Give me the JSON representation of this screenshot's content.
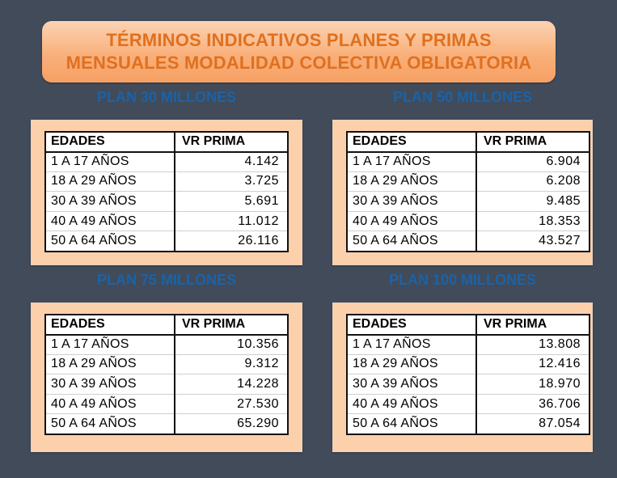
{
  "title": {
    "line1": "TÉRMINOS INDICATIVOS PLANES Y PRIMAS",
    "line2": "MENSUALES MODALIDAD COLECTIVA OBLIGATORIA"
  },
  "colors": {
    "background": "#414b5a",
    "title_text": "#e0701f",
    "plan_label": "#1a63a8",
    "panel": "#fdd0ac"
  },
  "plans": [
    {
      "label": "PLAN 30 MILLONES",
      "header_age": "EDADES",
      "header_value": "VR PRIMA",
      "rows": [
        {
          "age": "1 A 17 AÑOS",
          "value": "4.142"
        },
        {
          "age": "18 A 29 AÑOS",
          "value": "3.725"
        },
        {
          "age": "30 A 39 AÑOS",
          "value": "5.691"
        },
        {
          "age": "40 A 49 AÑOS",
          "value": "11.012"
        },
        {
          "age": "50 A 64 AÑOS",
          "value": "26.116"
        }
      ]
    },
    {
      "label": "PLAN 50 MILLONES",
      "header_age": "EDADES",
      "header_value": "VR PRIMA",
      "rows": [
        {
          "age": "1 A 17 AÑOS",
          "value": "6.904"
        },
        {
          "age": "18 A 29 AÑOS",
          "value": "6.208"
        },
        {
          "age": "30 A 39 AÑOS",
          "value": "9.485"
        },
        {
          "age": "40 A 49 AÑOS",
          "value": "18.353"
        },
        {
          "age": "50 A 64 AÑOS",
          "value": "43.527"
        }
      ]
    },
    {
      "label": "PLAN 75 MILLONES",
      "header_age": "EDADES",
      "header_value": "VR PRIMA",
      "rows": [
        {
          "age": "1 A 17 AÑOS",
          "value": "10.356"
        },
        {
          "age": "18 A 29 AÑOS",
          "value": "9.312"
        },
        {
          "age": "30 A 39 AÑOS",
          "value": "14.228"
        },
        {
          "age": "40 A 49 AÑOS",
          "value": "27.530"
        },
        {
          "age": "50 A 64 AÑOS",
          "value": "65.290"
        }
      ]
    },
    {
      "label": "PLAN 100 MILLONES",
      "header_age": "EDADES",
      "header_value": "VR PRIMA",
      "rows": [
        {
          "age": "1 A 17 AÑOS",
          "value": "13.808"
        },
        {
          "age": "18 A 29 AÑOS",
          "value": "12.416"
        },
        {
          "age": "30 A 39 AÑOS",
          "value": "18.970"
        },
        {
          "age": "40 A 49 AÑOS",
          "value": "36.706"
        },
        {
          "age": "50 A 64 AÑOS",
          "value": "87.054"
        }
      ]
    }
  ]
}
